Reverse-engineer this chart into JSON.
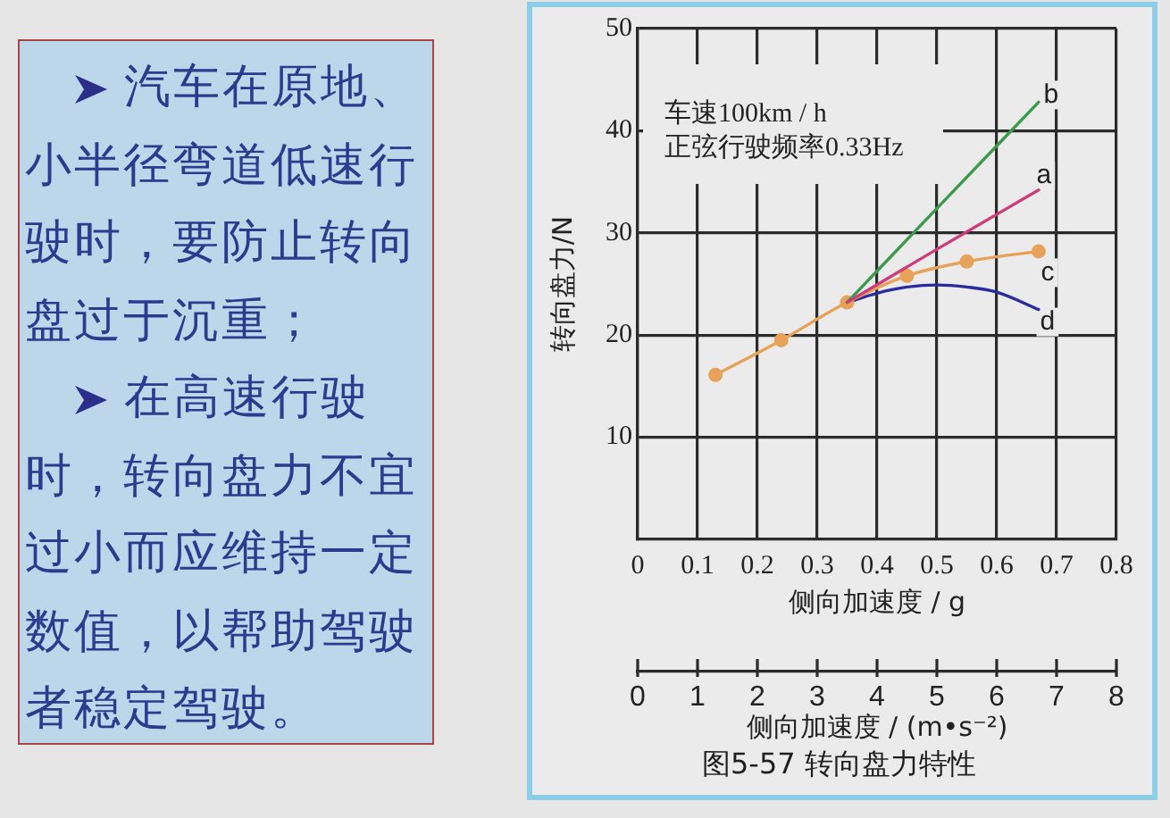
{
  "chart_data": {
    "type": "line",
    "xlabel": "侧向加速度 / g",
    "ylabel": "转向盘力/N",
    "x2label": "侧向加速度 / (m•s⁻²)",
    "annotations": [
      "车速100km / h",
      "正弦行驶频率0.33Hz",
      "图5-57 转向盘力特性",
      "汽车在原地、小半径弯道低速行驶时，要防止转向盘过于沉重；",
      "在高速行驶时，转向盘力不宜过小而应维持一定数值，以帮助驾驶者稳定驾驶。"
    ],
    "xlim": [
      0,
      0.8
    ],
    "xticks": [
      0,
      0.1,
      0.2,
      0.3,
      0.4,
      0.5,
      0.6,
      0.7,
      0.8
    ],
    "x2lim": [
      0,
      8
    ],
    "x2ticks": [
      0,
      1,
      2,
      3,
      4,
      5,
      6,
      7,
      8
    ],
    "ylim": [
      0,
      50
    ],
    "yticks": [
      10,
      20,
      30,
      40,
      50
    ],
    "grid": true,
    "marker": "none",
    "series": [
      {
        "name": "a",
        "color": "#cc3d7a",
        "x": [
          0.35,
          0.5,
          0.67
        ],
        "values": [
          23.2,
          28.4,
          34.2
        ]
      },
      {
        "name": "b",
        "color": "#3c9a4c",
        "x": [
          0.35,
          0.5,
          0.67
        ],
        "values": [
          23.2,
          32.4,
          42.8
        ]
      },
      {
        "name": "c",
        "color": "#e6a258",
        "marker": "circle",
        "x": [
          0.13,
          0.24,
          0.35,
          0.45,
          0.55,
          0.67
        ],
        "values": [
          16.1,
          19.5,
          23.2,
          25.8,
          27.2,
          28.2
        ]
      },
      {
        "name": "d",
        "color": "#2b2b9b",
        "x": [
          0.35,
          0.4,
          0.45,
          0.5,
          0.55,
          0.6,
          0.67
        ],
        "values": [
          23.2,
          24.1,
          24.7,
          24.9,
          24.7,
          24.2,
          22.5
        ]
      }
    ]
  }
}
